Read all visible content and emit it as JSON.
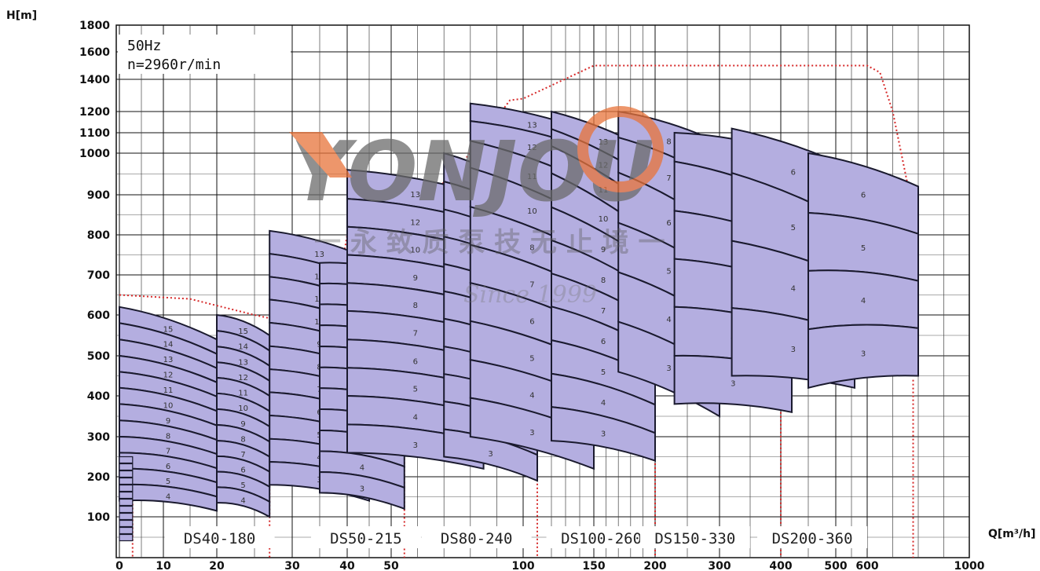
{
  "chart_data": {
    "type": "area",
    "y_axis": {
      "title": "H[m]",
      "ticks": [
        100,
        200,
        300,
        400,
        500,
        600,
        700,
        800,
        900,
        1000,
        1100,
        1200,
        1400,
        1600,
        1800
      ],
      "range": [
        0,
        1800
      ]
    },
    "x_axis": {
      "title": "Q[m³/h]",
      "ticks": [
        0,
        10,
        20,
        30,
        40,
        50,
        100,
        150,
        200,
        300,
        400,
        500,
        600,
        1000
      ],
      "range": [
        0,
        1000
      ]
    },
    "conditions": [
      "50Hz",
      "n=2960r/min"
    ],
    "watermark": {
      "brand": "YONJOU",
      "slogan": "一 永 致 质 泵 技 无 止 境 一",
      "since": "Since 1999"
    },
    "series": [
      {
        "name": "DS40-180",
        "q_range": [
          0,
          20
        ],
        "h_top": [
          620,
          540
        ],
        "h_bottom": [
          140,
          115
        ],
        "stages": [
          15,
          14,
          13,
          12,
          11,
          10,
          9,
          8,
          7,
          6,
          5,
          4
        ]
      },
      {
        "name": "DS40-180",
        "q_range": [
          20,
          27
        ],
        "h_top": [
          600,
          550
        ],
        "h_bottom": [
          135,
          100
        ],
        "stages": [
          15,
          14,
          13,
          12,
          11,
          10,
          9,
          8,
          7,
          6,
          5,
          4
        ]
      },
      {
        "name": "DS50-215",
        "q_range": [
          27,
          45
        ],
        "h_top": [
          810,
          740
        ],
        "h_bottom": [
          180,
          140
        ],
        "stages": [
          13,
          12,
          11,
          10,
          9,
          8,
          7,
          6,
          5,
          4,
          3
        ]
      },
      {
        "name": "DS50-215",
        "q_range": [
          35,
          55
        ],
        "h_top": [
          730,
          700
        ],
        "h_bottom": [
          160,
          120
        ],
        "stages": [
          13,
          12,
          11,
          10,
          9,
          8,
          7,
          6,
          5,
          4,
          3
        ]
      },
      {
        "name": "DS80-240",
        "q_range": [
          40,
          85
        ],
        "h_top": [
          960,
          900
        ],
        "h_bottom": [
          260,
          220
        ],
        "stages": [
          13,
          12,
          10,
          9,
          8,
          7,
          6,
          5,
          4,
          3
        ]
      },
      {
        "name": "DS80-240",
        "q_range": [
          70,
          110
        ],
        "h_top": [
          1000,
          900
        ],
        "h_bottom": [
          250,
          190
        ],
        "stages": [
          13,
          12,
          11,
          10,
          9,
          8,
          7,
          6,
          5,
          4,
          3
        ]
      },
      {
        "name": "DS100-260",
        "q_range": [
          80,
          150
        ],
        "h_top": [
          1250,
          1100
        ],
        "h_bottom": [
          300,
          220
        ],
        "stages": [
          13,
          12,
          11,
          10,
          8,
          7,
          6,
          5,
          4,
          3
        ]
      },
      {
        "name": "DS100-260",
        "q_range": [
          120,
          200
        ],
        "h_top": [
          1200,
          1000
        ],
        "h_bottom": [
          290,
          240
        ],
        "stages": [
          13,
          12,
          11,
          10,
          9,
          8,
          7,
          6,
          5,
          4,
          3
        ]
      },
      {
        "name": "DS150-330",
        "q_range": [
          170,
          300
        ],
        "h_top": [
          1200,
          1050
        ],
        "h_bottom": [
          460,
          350
        ],
        "stages": [
          8,
          7,
          6,
          5,
          4,
          3
        ]
      },
      {
        "name": "DS150-330",
        "q_range": [
          230,
          420
        ],
        "h_top": [
          1100,
          1000
        ],
        "h_bottom": [
          380,
          360
        ],
        "stages": [
          8,
          7,
          6,
          5,
          4,
          3
        ]
      },
      {
        "name": "DS200-360",
        "q_range": [
          320,
          560
        ],
        "h_top": [
          1120,
          960
        ],
        "h_bottom": [
          450,
          420
        ],
        "stages": [
          6,
          5,
          4,
          3
        ]
      },
      {
        "name": "DS200-360",
        "q_range": [
          450,
          800
        ],
        "h_top": [
          1000,
          920
        ],
        "h_bottom": [
          420,
          450
        ],
        "stages": [
          6,
          5,
          4,
          3
        ]
      }
    ],
    "legend_labels": [
      "DS40-180",
      "DS50-215",
      "DS80-240",
      "DS100-260",
      "DS150-330",
      "DS200-360"
    ],
    "colors": {
      "region_fill": "#b4aee0",
      "region_stroke": "#1a1a2e",
      "envelope": "#d62828",
      "grid": "#111111",
      "wm_orange": "#e8743a",
      "wm_gray": "#6b6b6b"
    }
  }
}
